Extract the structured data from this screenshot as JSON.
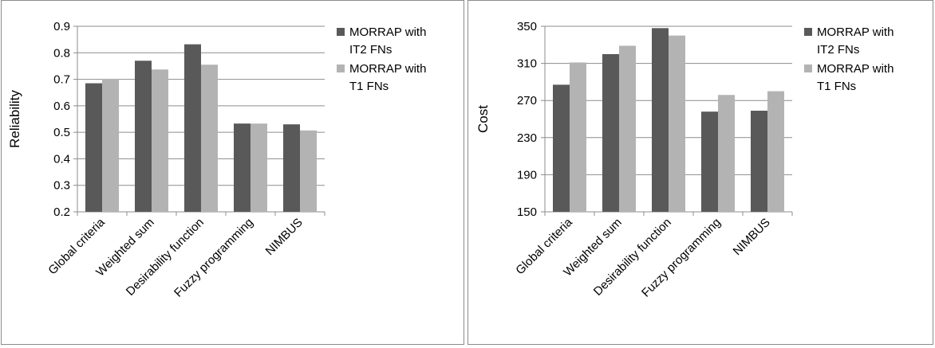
{
  "colors": {
    "it2": "#595959",
    "t1": "#b3b3b3",
    "grid": "#8c8c8c",
    "axis": "#8c8c8c"
  },
  "legend": {
    "it2_lines": [
      "MORRAP with",
      "IT2 FNs"
    ],
    "t1_lines": [
      "MORRAP with",
      "T1 FNs"
    ]
  },
  "chart_data": [
    {
      "type": "bar",
      "categories": [
        "Global criteria",
        "Weighted sum",
        "Desirability function",
        "Fuzzy programming",
        "NIMBUS"
      ],
      "series": [
        {
          "name": "MORRAP with IT2 FNs",
          "values": [
            0.685,
            0.77,
            0.832,
            0.533,
            0.53
          ]
        },
        {
          "name": "MORRAP with T1 FNs",
          "values": [
            0.702,
            0.737,
            0.755,
            0.533,
            0.507
          ]
        }
      ],
      "xlabel": "",
      "ylabel": "Reliability",
      "ylim": [
        0.2,
        0.9
      ],
      "yticks": [
        0.2,
        0.3,
        0.4,
        0.5,
        0.6,
        0.7,
        0.8,
        0.9
      ],
      "ytick_labels": [
        "0.2",
        "0.3",
        "0.4",
        "0.5",
        "0.6",
        "0.7",
        "0.8",
        "0.9"
      ],
      "grid": true,
      "legend_position": "right"
    },
    {
      "type": "bar",
      "categories": [
        "Global criteria",
        "Weighted sum",
        "Desirability function",
        "Fuzzy programming",
        "NIMBUS"
      ],
      "series": [
        {
          "name": "MORRAP with IT2 FNs",
          "values": [
            287,
            320,
            348,
            258,
            259
          ]
        },
        {
          "name": "MORRAP with T1 FNs",
          "values": [
            311,
            329,
            340,
            276,
            280
          ]
        }
      ],
      "xlabel": "",
      "ylabel": "Cost",
      "ylim": [
        150,
        350
      ],
      "yticks": [
        150,
        190,
        230,
        270,
        310,
        350
      ],
      "ytick_labels": [
        "150",
        "190",
        "230",
        "270",
        "310",
        "350"
      ],
      "grid": true,
      "legend_position": "right"
    }
  ]
}
